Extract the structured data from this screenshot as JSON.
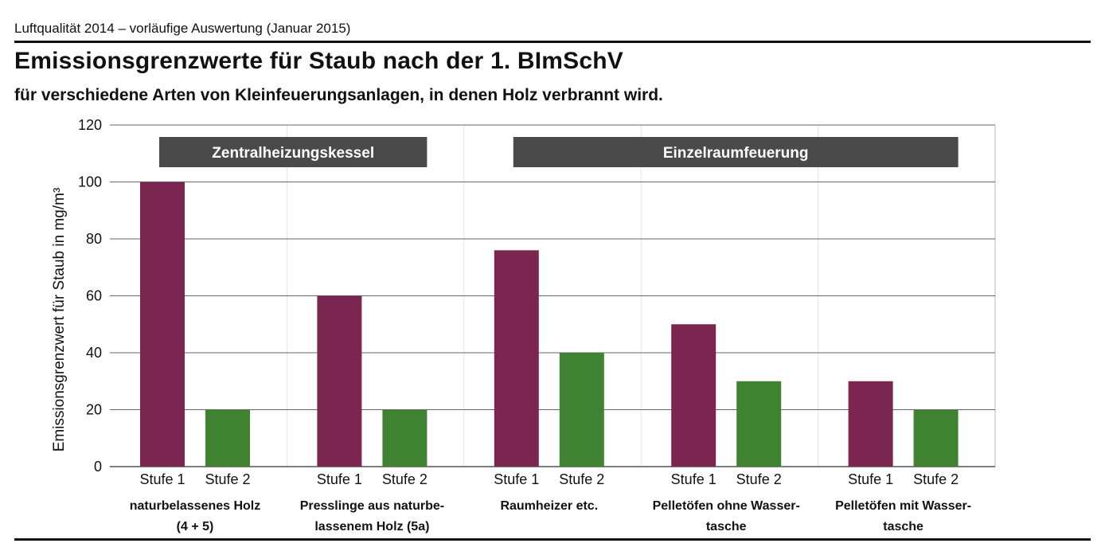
{
  "header": {
    "kicker": "Luftqualität 2014 – vorläufige Auswertung (Januar 2015)",
    "title": "Emissionsgrenzwerte für Staub nach der 1. BImSchV",
    "subtitle": "für verschiedene Arten von Kleinfeuerungsanlagen, in denen Holz verbrannt wird."
  },
  "chart_data": {
    "type": "bar",
    "ylabel": "Emissionsgrenzwert für Staub in mg/m³",
    "ylim": [
      0,
      120
    ],
    "yticks": [
      0,
      20,
      40,
      60,
      80,
      100,
      120
    ],
    "grid": true,
    "series_colors": {
      "Stufe 1": "#7a2650",
      "Stufe 2": "#3f8232"
    },
    "band_color": "#4a4a4a",
    "bands": [
      {
        "label": "Zentralheizungskessel",
        "from_group": 0,
        "to_group": 1
      },
      {
        "label": "Einzelraumfeuerung",
        "from_group": 2,
        "to_group": 4
      }
    ],
    "groups": [
      {
        "label_lines": [
          "naturbelassenes Holz",
          "(4 + 5)"
        ],
        "bars": [
          {
            "label": "Stufe 1",
            "value": 100
          },
          {
            "label": "Stufe 2",
            "value": 20
          }
        ]
      },
      {
        "label_lines": [
          "Presslinge aus naturbe-",
          "lassenem Holz (5a)"
        ],
        "bars": [
          {
            "label": "Stufe 1",
            "value": 60
          },
          {
            "label": "Stufe 2",
            "value": 20
          }
        ]
      },
      {
        "label_lines": [
          "Raumheizer etc."
        ],
        "bars": [
          {
            "label": "Stufe 1",
            "value": 76
          },
          {
            "label": "Stufe 2",
            "value": 40
          }
        ]
      },
      {
        "label_lines": [
          "Pelletöfen ohne Wasser-",
          "tasche"
        ],
        "bars": [
          {
            "label": "Stufe 1",
            "value": 50
          },
          {
            "label": "Stufe 2",
            "value": 30
          }
        ]
      },
      {
        "label_lines": [
          "Pelletöfen mit Wasser-",
          "tasche"
        ],
        "bars": [
          {
            "label": "Stufe 1",
            "value": 30
          },
          {
            "label": "Stufe 2",
            "value": 20
          }
        ]
      }
    ]
  }
}
